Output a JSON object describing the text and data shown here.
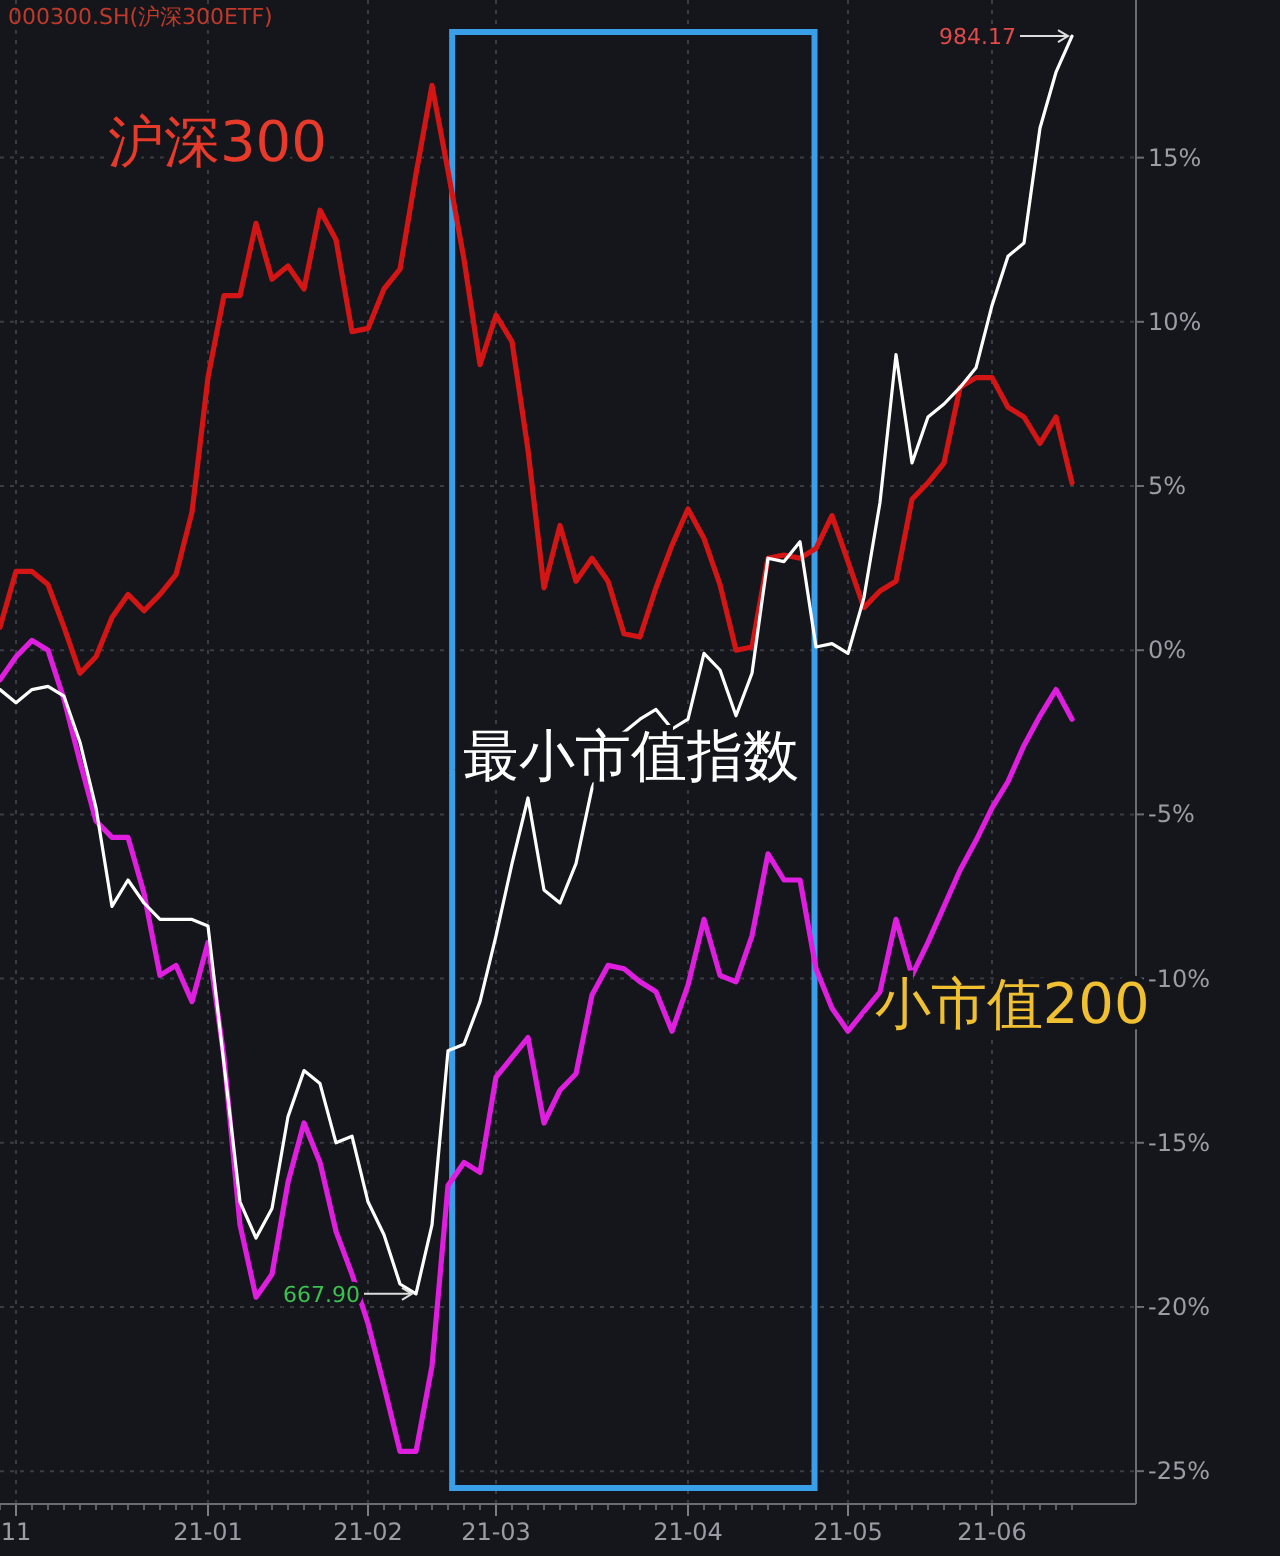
{
  "chart_data": {
    "type": "line",
    "title": "000300.SH(沪深300ETF)",
    "categories": [
      null,
      "11",
      null,
      null,
      null,
      null,
      null,
      null,
      null,
      null,
      null,
      null,
      null,
      "21-01",
      null,
      null,
      null,
      null,
      null,
      null,
      null,
      null,
      null,
      "21-02",
      null,
      null,
      null,
      null,
      null,
      null,
      null,
      "21-03",
      null,
      null,
      null,
      null,
      null,
      null,
      null,
      null,
      null,
      null,
      null,
      "21-04",
      null,
      null,
      null,
      null,
      null,
      null,
      null,
      null,
      null,
      "21-05",
      null,
      null,
      null,
      null,
      null,
      null,
      null,
      null,
      "21-06",
      null,
      null,
      null,
      null,
      null
    ],
    "series": [
      {
        "name": "沪深300",
        "color": "#d41515",
        "values": [
          0.7,
          2.4,
          2.4,
          2.0,
          0.7,
          -0.7,
          -0.2,
          1.0,
          1.7,
          1.2,
          1.7,
          2.3,
          4.2,
          8.3,
          10.8,
          10.8,
          13.0,
          11.3,
          11.7,
          11.0,
          13.4,
          12.5,
          9.7,
          9.8,
          11.0,
          11.6,
          14.5,
          17.2,
          14.6,
          11.9,
          8.7,
          10.2,
          9.4,
          6.1,
          1.9,
          3.8,
          2.1,
          2.8,
          2.1,
          0.5,
          0.4,
          1.9,
          3.2,
          4.3,
          3.4,
          2.0,
          0.0,
          0.1,
          2.8,
          2.9,
          2.8,
          3.1,
          4.1,
          2.7,
          1.3,
          1.8,
          2.1,
          4.6,
          5.1,
          5.7,
          8.0,
          8.3,
          8.3,
          7.4,
          7.1,
          6.3,
          7.1,
          5.1
        ]
      },
      {
        "name": "最小市值指数",
        "color": "#ffffff",
        "values": [
          -1.2,
          -1.6,
          -1.2,
          -1.1,
          -1.4,
          -2.8,
          -4.8,
          -7.8,
          -7.0,
          -7.7,
          -8.2,
          -8.2,
          -8.2,
          -8.4,
          -12.6,
          -16.8,
          -17.9,
          -17.0,
          -14.2,
          -12.8,
          -13.2,
          -15.0,
          -14.8,
          -16.8,
          -17.8,
          -19.3,
          -19.6,
          -17.5,
          -12.2,
          -12.0,
          -10.7,
          -8.7,
          -6.5,
          -4.5,
          -7.3,
          -7.7,
          -6.5,
          -4.2,
          -3.0,
          -2.5,
          -2.1,
          -1.8,
          -2.4,
          -2.1,
          -0.1,
          -0.6,
          -2.0,
          -0.7,
          2.8,
          2.7,
          3.3,
          0.1,
          0.2,
          -0.1,
          1.6,
          4.5,
          9.0,
          5.7,
          7.1,
          7.5,
          8.0,
          8.6,
          10.5,
          12.0,
          12.4,
          15.9,
          17.6,
          18.7
        ]
      },
      {
        "name": "小市值200",
        "color": "#e01ee0",
        "values": [
          -0.9,
          -0.2,
          0.3,
          0.0,
          -1.5,
          -3.4,
          -5.2,
          -5.7,
          -5.7,
          -7.4,
          -9.9,
          -9.6,
          -10.7,
          -8.9,
          -12.4,
          -17.5,
          -19.7,
          -19.0,
          -16.2,
          -14.4,
          -15.6,
          -17.7,
          -19.0,
          -20.5,
          -22.4,
          -24.4,
          -24.4,
          -21.8,
          -16.3,
          -15.6,
          -15.9,
          -13.0,
          -12.4,
          -11.8,
          -14.4,
          -13.4,
          -12.9,
          -10.5,
          -9.6,
          -9.7,
          -10.1,
          -10.4,
          -11.6,
          -10.2,
          -8.2,
          -9.9,
          -10.1,
          -8.7,
          -6.2,
          -7.0,
          -7.0,
          -9.7,
          -10.9,
          -11.6,
          -11.0,
          -10.4,
          -8.2,
          -9.9,
          -8.9,
          -7.8,
          -6.7,
          -5.8,
          -4.8,
          -4.0,
          -2.9,
          -2.0,
          -1.2,
          -2.1
        ]
      }
    ],
    "ylim": [
      -26,
      19.8
    ],
    "yticks": [
      {
        "value": 15,
        "label": "15%"
      },
      {
        "value": 10,
        "label": "10%"
      },
      {
        "value": 5,
        "label": "5%"
      },
      {
        "value": 0,
        "label": "0%"
      },
      {
        "value": -5,
        "label": "-5%"
      },
      {
        "value": -10,
        "label": "-10%"
      },
      {
        "value": -15,
        "label": "-15%"
      },
      {
        "value": -20,
        "label": "-20%"
      },
      {
        "value": -25,
        "label": "-25%"
      }
    ],
    "grid": true,
    "annotations": [
      "984.17",
      "667.90"
    ]
  }
}
